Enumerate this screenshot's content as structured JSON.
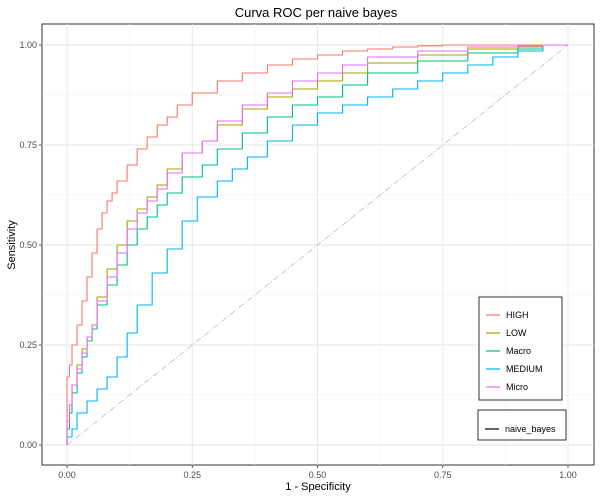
{
  "chart_data": {
    "type": "line",
    "title": "Curva ROC per naive bayes",
    "xlabel": "1 - Specificity",
    "ylabel": "Sensitivity",
    "xlim": [
      0,
      1
    ],
    "ylim": [
      0,
      1
    ],
    "xticks": [
      "0.00",
      "0.25",
      "0.50",
      "0.75",
      "1.00"
    ],
    "yticks": [
      "0.00",
      "0.25",
      "0.50",
      "0.75",
      "1.00"
    ],
    "grid": true,
    "legend_position": "bottom-right",
    "reference_line": {
      "x": [
        0,
        1
      ],
      "y": [
        0,
        1
      ],
      "style": "dot-dash",
      "color": "#bdbdbd"
    },
    "series": [
      {
        "name": "HIGH",
        "color": "#F8766D",
        "x": [
          0,
          0.005,
          0.01,
          0.02,
          0.03,
          0.04,
          0.05,
          0.06,
          0.07,
          0.08,
          0.09,
          0.1,
          0.12,
          0.14,
          0.16,
          0.18,
          0.2,
          0.22,
          0.25,
          0.3,
          0.35,
          0.4,
          0.45,
          0.5,
          0.55,
          0.6,
          0.65,
          0.7,
          0.75,
          0.8,
          0.9,
          1.0
        ],
        "y": [
          0,
          0.17,
          0.2,
          0.25,
          0.3,
          0.36,
          0.42,
          0.48,
          0.54,
          0.58,
          0.61,
          0.63,
          0.66,
          0.7,
          0.74,
          0.77,
          0.8,
          0.82,
          0.85,
          0.88,
          0.91,
          0.93,
          0.95,
          0.965,
          0.975,
          0.985,
          0.99,
          0.995,
          0.998,
          1.0,
          1.0,
          1.0
        ]
      },
      {
        "name": "LOW",
        "color": "#A3A500",
        "x": [
          0,
          0.005,
          0.01,
          0.02,
          0.03,
          0.04,
          0.05,
          0.06,
          0.08,
          0.1,
          0.12,
          0.14,
          0.16,
          0.18,
          0.2,
          0.23,
          0.27,
          0.3,
          0.35,
          0.4,
          0.45,
          0.5,
          0.55,
          0.6,
          0.7,
          0.8,
          0.9,
          0.95,
          1.0
        ],
        "y": [
          0,
          0.06,
          0.1,
          0.15,
          0.2,
          0.24,
          0.27,
          0.3,
          0.37,
          0.44,
          0.5,
          0.56,
          0.59,
          0.62,
          0.65,
          0.69,
          0.73,
          0.76,
          0.8,
          0.84,
          0.87,
          0.89,
          0.91,
          0.93,
          0.955,
          0.975,
          0.99,
          0.995,
          1.0
        ]
      },
      {
        "name": "Macro",
        "color": "#00BF7D",
        "x": [
          0,
          0.005,
          0.01,
          0.02,
          0.03,
          0.04,
          0.05,
          0.06,
          0.08,
          0.1,
          0.12,
          0.14,
          0.16,
          0.18,
          0.2,
          0.23,
          0.27,
          0.3,
          0.35,
          0.4,
          0.45,
          0.5,
          0.55,
          0.6,
          0.7,
          0.8,
          0.9,
          0.95,
          1.0
        ],
        "y": [
          0,
          0.04,
          0.08,
          0.13,
          0.18,
          0.22,
          0.26,
          0.29,
          0.35,
          0.4,
          0.45,
          0.5,
          0.54,
          0.57,
          0.6,
          0.63,
          0.67,
          0.7,
          0.74,
          0.78,
          0.82,
          0.85,
          0.87,
          0.9,
          0.93,
          0.96,
          0.98,
          0.99,
          1.0
        ]
      },
      {
        "name": "MEDIUM",
        "color": "#00B0F6",
        "x": [
          0,
          0.01,
          0.02,
          0.04,
          0.06,
          0.08,
          0.1,
          0.12,
          0.14,
          0.17,
          0.2,
          0.23,
          0.26,
          0.3,
          0.33,
          0.36,
          0.4,
          0.45,
          0.5,
          0.55,
          0.6,
          0.65,
          0.7,
          0.75,
          0.8,
          0.85,
          0.9,
          0.95,
          1.0
        ],
        "y": [
          0,
          0.02,
          0.04,
          0.08,
          0.11,
          0.14,
          0.17,
          0.22,
          0.28,
          0.35,
          0.43,
          0.49,
          0.56,
          0.62,
          0.66,
          0.69,
          0.72,
          0.76,
          0.8,
          0.83,
          0.85,
          0.87,
          0.89,
          0.91,
          0.93,
          0.95,
          0.97,
          0.985,
          1.0
        ]
      },
      {
        "name": "Micro",
        "color": "#E76BF3",
        "x": [
          0,
          0.005,
          0.01,
          0.02,
          0.03,
          0.04,
          0.05,
          0.06,
          0.08,
          0.1,
          0.12,
          0.14,
          0.16,
          0.18,
          0.2,
          0.23,
          0.27,
          0.3,
          0.35,
          0.4,
          0.45,
          0.5,
          0.55,
          0.6,
          0.7,
          0.8,
          0.9,
          0.95,
          1.0
        ],
        "y": [
          0,
          0.06,
          0.1,
          0.15,
          0.19,
          0.23,
          0.27,
          0.3,
          0.36,
          0.42,
          0.48,
          0.54,
          0.58,
          0.61,
          0.64,
          0.68,
          0.73,
          0.76,
          0.81,
          0.85,
          0.88,
          0.91,
          0.93,
          0.95,
          0.97,
          0.985,
          0.995,
          0.998,
          1.0
        ]
      }
    ],
    "legend2": {
      "label": "naive_bayes",
      "color": "#000000"
    }
  }
}
